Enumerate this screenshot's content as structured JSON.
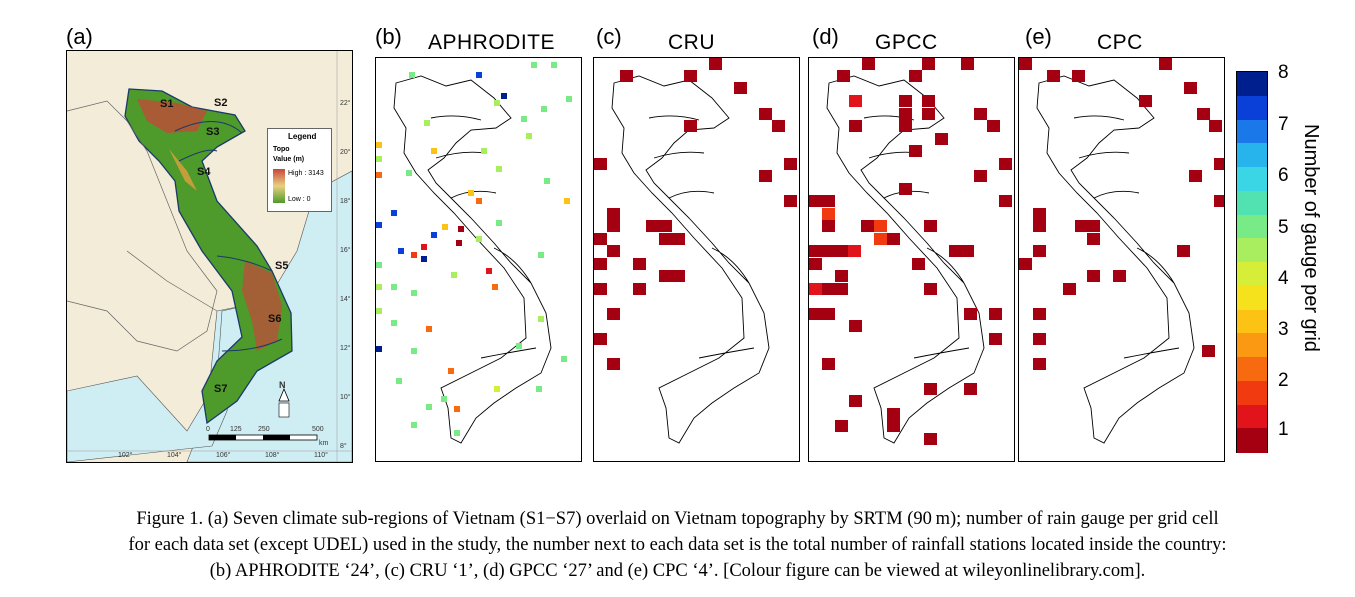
{
  "panels": [
    {
      "id": "a",
      "label": "(a)",
      "title": ""
    },
    {
      "id": "b",
      "label": "(b)",
      "title": "APHRODITE"
    },
    {
      "id": "c",
      "label": "(c)",
      "title": "CRU"
    },
    {
      "id": "d",
      "label": "(d)",
      "title": "GPCC"
    },
    {
      "id": "e",
      "label": "(e)",
      "title": "CPC"
    }
  ],
  "map_a": {
    "regions": [
      "S1",
      "S2",
      "S3",
      "S4",
      "S5",
      "S6",
      "S7"
    ],
    "legend": {
      "title": "Legend",
      "topo": "Topo",
      "value": "Value (m)",
      "high": "High : 3143",
      "low": "Low : 0"
    },
    "lat_ticks": [
      "22°",
      "20°",
      "18°",
      "16°",
      "14°",
      "12°",
      "10°",
      "8°"
    ],
    "lon_ticks": [
      "102°",
      "104°",
      "106°",
      "108°",
      "110°"
    ],
    "scale": [
      "0",
      "125",
      "250",
      "500",
      "km"
    ],
    "north": "N",
    "colors": {
      "sea": "#cfeef4",
      "land": "#f3ecd8",
      "lowland": "#4e9a2a",
      "highland": "#c8463a"
    }
  },
  "colorbar": {
    "label": "Number of gauge per grid",
    "ticks": [
      "8",
      "7",
      "6",
      "5",
      "4",
      "3",
      "2",
      "1"
    ],
    "colors": [
      "#001f8f",
      "#0a3fd8",
      "#1a78e8",
      "#27b4ec",
      "#3ad6e6",
      "#52e2b2",
      "#78ea86",
      "#a8ee5e",
      "#d6ee38",
      "#f6e21c",
      "#fcc214",
      "#fb9912",
      "#f76a10",
      "#f23a10",
      "#e0141a",
      "#a40012"
    ]
  },
  "caption": {
    "line1": "Figure 1. (a) Seven climate sub-regions of Vietnam (S1−S7) overlaid on Vietnam topography by SRTM (90 m); number of rain gauge per grid cell",
    "line2": "for each data set (except UDEL) used in the study, the number next to each data set is the total number of rainfall stations located inside the country:",
    "line3": "(b) APHRODITE ‘24’, (c) CRU ‘1’, (d) GPCC ‘27’ and (e) CPC ‘4’. [Colour figure can be viewed at wileyonlinelibrary.com]."
  }
}
